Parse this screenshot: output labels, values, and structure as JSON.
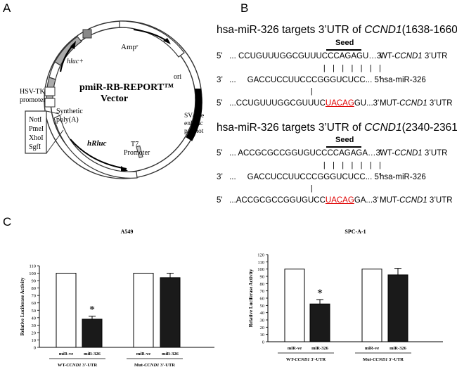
{
  "panels": {
    "a": "A",
    "b": "B",
    "c": "C"
  },
  "vector": {
    "name": "pmiR-RB-REPORT™",
    "sub": "Vector",
    "labels": {
      "amp": "Ampʳ",
      "hluc": "hluc+",
      "ori": "ori",
      "hsv": "HSV-TK",
      "promoter": "promoter",
      "synthetic": "Synthetic",
      "polya": "poly(A)",
      "sv40_1": "SV40 e",
      "sv40_2": "enhanc",
      "sv40_3": "promot",
      "t7": "T7",
      "t7p": "Promoter",
      "hrluc": "hRluc"
    },
    "mcs": [
      "NotI",
      "PmeI",
      "XhoI",
      "SgfI"
    ]
  },
  "targets": [
    {
      "title_pre": "hsa-miR-326 targets 3’UTR of ",
      "gene": "CCND1",
      "title_post": "(1638-1660)",
      "seed": "Seed",
      "wt": {
        "prefix": "5'   ... CCUGUUUGGCGUUUC",
        "seed": "CCAGAG",
        "suffix": "U…3'",
        "label_pre": "WT-",
        "gene": "CCND1",
        "label_post": " 3’UTR"
      },
      "bars": "| | | | | | |",
      "mir": {
        "seq": "3’   ...     GACCUCCUUCCCGGGUCUCC... 5'",
        "label": "hsa-miR-326"
      },
      "bar2": "|",
      "mut": {
        "prefix": "5'   ...CCUGUUUGGCGUUUC",
        "seed": "UACAG",
        "suffix": "GU...3'",
        "label_pre": "MUT-",
        "gene": "CCND1",
        "label_post": " 3’UTR"
      }
    },
    {
      "title_pre": "hsa-miR-326 targets 3’UTR of ",
      "gene": "CCND1",
      "title_post": "(2340-2361)",
      "seed": "Seed",
      "wt": {
        "prefix": "5'   ... ACCGCGCCGGUGUCC",
        "seed": "CCAGAG",
        "suffix": "A…3'",
        "label_pre": "WT-",
        "gene": "CCND1",
        "label_post": " 3’UTR"
      },
      "bars": "| | | | | | |",
      "mir": {
        "seq": "3’   ...     GACCUCCUUCCCGGGUCUCC... 5'",
        "label": "hsa-miR-326"
      },
      "bar2": "|",
      "mut": {
        "prefix": "5'   ...ACCGCGCCGGUGUCC",
        "seed": "UACAG",
        "suffix": "GA...3'",
        "label_pre": "MUT-",
        "gene": "CCND1",
        "label_post": " 3’UTR"
      }
    }
  ],
  "chart_data": [
    {
      "type": "bar",
      "title": "A549",
      "ylabel": "Relative Luciferase Activity",
      "ylim": [
        0,
        110
      ],
      "yticks": [
        0,
        10,
        20,
        30,
        40,
        50,
        60,
        70,
        80,
        90,
        100,
        110
      ],
      "categories": [
        "miR-ve",
        "miR-326",
        "miR-ve",
        "miR-326"
      ],
      "values": [
        100,
        38,
        100,
        94
      ],
      "errors": [
        0,
        4,
        0,
        6
      ],
      "fills": [
        "#ffffff",
        "#1a1a1a",
        "#ffffff",
        "#1a1a1a"
      ],
      "significance": [
        "",
        "*",
        "",
        ""
      ],
      "groups": [
        {
          "pre": "WT-",
          "gene": "CCND1",
          "post": " 3'-UTR"
        },
        {
          "pre": "Mut-",
          "gene": "CCND1",
          "post": " 3'-UTR"
        }
      ]
    },
    {
      "type": "bar",
      "title": "SPC-A-1",
      "ylabel": "Relative Luciferase Activity",
      "ylim": [
        0,
        120
      ],
      "yticks": [
        0,
        10,
        20,
        30,
        40,
        50,
        60,
        70,
        80,
        90,
        100,
        110,
        120
      ],
      "categories": [
        "miR-ve",
        "miR-326",
        "miR-ve",
        "miR-326"
      ],
      "values": [
        100,
        52,
        100,
        92
      ],
      "errors": [
        0,
        6,
        0,
        9
      ],
      "fills": [
        "#ffffff",
        "#1a1a1a",
        "#ffffff",
        "#1a1a1a"
      ],
      "significance": [
        "",
        "*",
        "",
        ""
      ],
      "groups": [
        {
          "pre": "WT-",
          "gene": "CCND1",
          "post": " 3'-UTR"
        },
        {
          "pre": "Mut-",
          "gene": "CCND1",
          "post": " 3'-UTR"
        }
      ]
    }
  ]
}
